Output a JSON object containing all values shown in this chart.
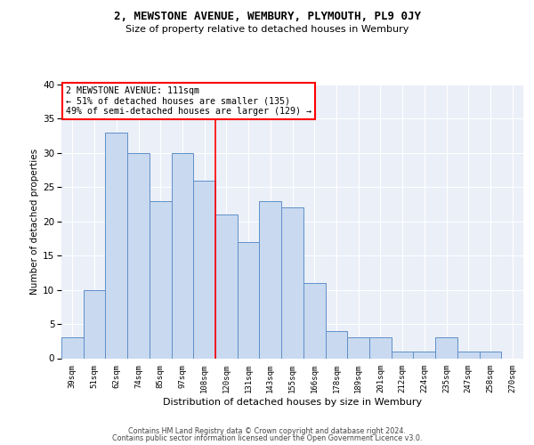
{
  "title1": "2, MEWSTONE AVENUE, WEMBURY, PLYMOUTH, PL9 0JY",
  "title2": "Size of property relative to detached houses in Wembury",
  "xlabel": "Distribution of detached houses by size in Wembury",
  "ylabel": "Number of detached properties",
  "categories": [
    "39sqm",
    "51sqm",
    "62sqm",
    "74sqm",
    "85sqm",
    "97sqm",
    "108sqm",
    "120sqm",
    "131sqm",
    "143sqm",
    "155sqm",
    "166sqm",
    "178sqm",
    "189sqm",
    "201sqm",
    "212sqm",
    "224sqm",
    "235sqm",
    "247sqm",
    "258sqm",
    "270sqm"
  ],
  "values": [
    3,
    10,
    33,
    30,
    23,
    30,
    26,
    21,
    17,
    23,
    22,
    11,
    4,
    3,
    3,
    1,
    1,
    3,
    1,
    1,
    0
  ],
  "bar_color": "#c9d9f0",
  "bar_edge_color": "#6090c8",
  "red_line_index": 6,
  "annotation_line1": "2 MEWSTONE AVENUE: 111sqm",
  "annotation_line2": "← 51% of detached houses are smaller (135)",
  "annotation_line3": "49% of semi-detached houses are larger (129) →",
  "background_color": "#eaeff8",
  "footer_line1": "Contains HM Land Registry data © Crown copyright and database right 2024.",
  "footer_line2": "Contains public sector information licensed under the Open Government Licence v3.0.",
  "ylim": [
    0,
    40
  ],
  "yticks": [
    0,
    5,
    10,
    15,
    20,
    25,
    30,
    35,
    40
  ]
}
